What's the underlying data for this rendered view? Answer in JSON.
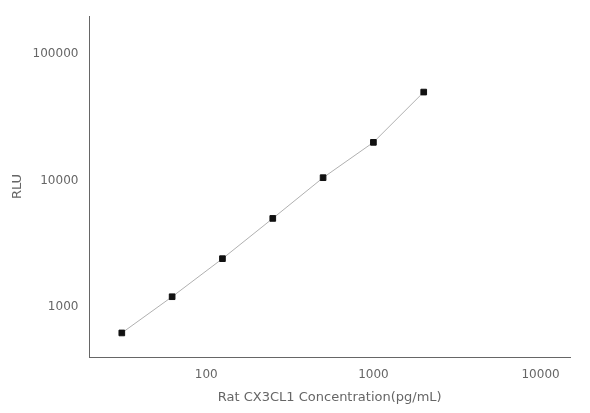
{
  "chart_data": {
    "type": "line",
    "x": [
      31.25,
      62.5,
      125,
      250,
      500,
      1000,
      2000
    ],
    "series": [
      {
        "type": "line",
        "color": "#b0b0b0",
        "marker": "none",
        "values": [
          620,
          1200,
          2400,
          5000,
          10500,
          20000,
          50000
        ]
      },
      {
        "type": "scatter",
        "color": "#111111",
        "marker": "square",
        "values": [
          620,
          1200,
          2400,
          5000,
          10500,
          20000,
          50000
        ]
      }
    ],
    "xlabel": "Rat CX3CL1 Concentration(pg/mL)",
    "ylabel": "RLU",
    "xlim": [
      20,
      15000
    ],
    "ylim": [
      400,
      200000
    ],
    "xticks": [
      100,
      1000,
      10000
    ],
    "yticks": [
      1000,
      10000,
      100000
    ],
    "log": true,
    "grid": false
  }
}
